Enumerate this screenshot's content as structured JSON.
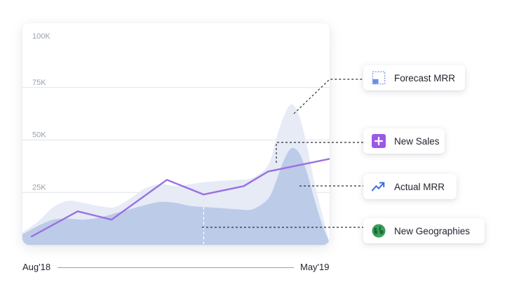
{
  "chart_data": {
    "type": "area",
    "ylim": [
      0,
      100000
    ],
    "yticks": [
      {
        "value": 100000,
        "label": "100K"
      },
      {
        "value": 75000,
        "label": "75K"
      },
      {
        "value": 50000,
        "label": "50K"
      },
      {
        "value": 25000,
        "label": "25K"
      }
    ],
    "x_start_label": "Aug'18",
    "x_end_label": "May'19",
    "xlim": [
      0,
      10
    ],
    "series": [
      {
        "name": "Forecast MRR",
        "kind": "area",
        "color": "#e6ebf6",
        "x": [
          0,
          0.5,
          1,
          1.5,
          2,
          2.5,
          3,
          3.5,
          4,
          4.5,
          5,
          5.5,
          6,
          6.5,
          7,
          7.5,
          8,
          8.25,
          8.5,
          8.75,
          9,
          9.25,
          9.5,
          9.75,
          10
        ],
        "values": [
          6000,
          11000,
          18000,
          21000,
          20000,
          18500,
          18000,
          22000,
          27000,
          29000,
          28000,
          29000,
          30000,
          30500,
          31000,
          32000,
          38000,
          50000,
          61000,
          67000,
          62000,
          48000,
          30000,
          15000,
          1000
        ]
      },
      {
        "name": "Actual MRR",
        "kind": "area",
        "color": "#bccbe8",
        "x": [
          0,
          0.5,
          1,
          1.5,
          2,
          2.5,
          3,
          3.5,
          4,
          4.5,
          5,
          5.5,
          6,
          6.5,
          7,
          7.5,
          8,
          8.25,
          8.5,
          8.75,
          9,
          9.25,
          9.5,
          9.75,
          10
        ],
        "values": [
          5000,
          9000,
          12000,
          12500,
          12000,
          13000,
          15000,
          17000,
          19000,
          20500,
          20000,
          18500,
          18000,
          17500,
          17000,
          17000,
          22000,
          30000,
          40000,
          46000,
          44000,
          35000,
          22000,
          10000,
          1000
        ]
      },
      {
        "name": "New Sales",
        "kind": "line",
        "color": "#9b6fe0",
        "x": [
          0.3,
          1.8,
          2.9,
          4.7,
          5.9,
          7.2,
          8.0,
          10.0
        ],
        "values": [
          4000,
          16000,
          12000,
          31000,
          24000,
          28000,
          35000,
          41000
        ]
      }
    ],
    "markers": [
      {
        "name": "New Geographies",
        "x": 5.9
      }
    ],
    "grid": true,
    "legend": "right callouts"
  },
  "callouts": {
    "forecast": {
      "label": "Forecast MRR",
      "icon": "dashed-square-icon",
      "color": "#6b8fe6"
    },
    "sales": {
      "label": "New Sales",
      "icon": "plus-square-icon",
      "color": "#9b59e6"
    },
    "actual": {
      "label": "Actual MRR",
      "icon": "trending-up-icon",
      "color": "#3a6fd8"
    },
    "geo": {
      "label": "New Geographies",
      "icon": "globe-icon",
      "color": "#3aa15e"
    }
  }
}
